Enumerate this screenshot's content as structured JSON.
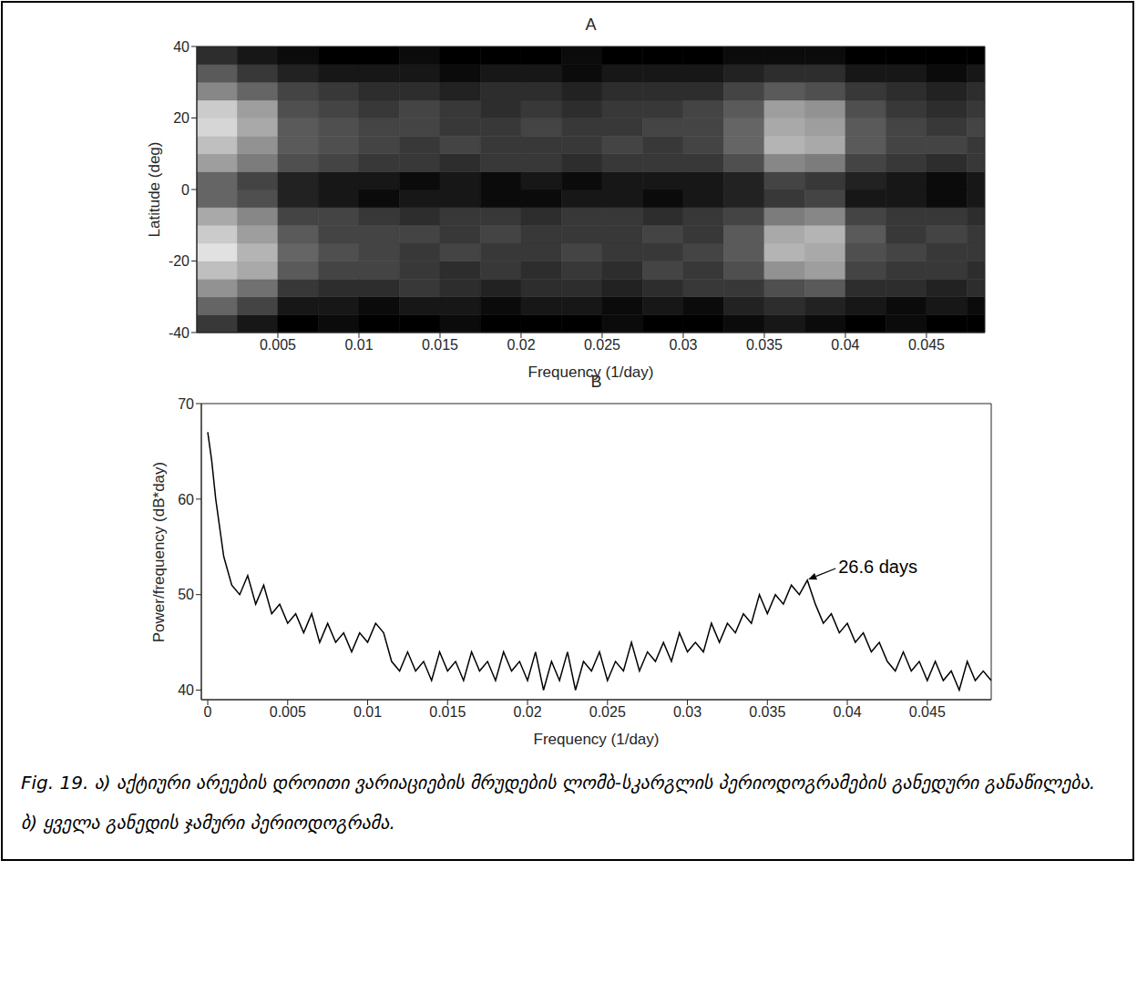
{
  "chart_data": [
    {
      "type": "heatmap",
      "title": "A",
      "xlabel": "Frequency (1/day)",
      "ylabel": "Latitude (deg)",
      "xlim": [
        0,
        0.0486
      ],
      "ylim": [
        -40,
        40
      ],
      "xticks": [
        0.005,
        0.01,
        0.015,
        0.02,
        0.025,
        0.03,
        0.035,
        0.04,
        0.045
      ],
      "yticks": [
        -40,
        -20,
        0,
        20,
        40
      ],
      "x_bins": [
        0,
        0.0025,
        0.005,
        0.0075,
        0.01,
        0.0125,
        0.015,
        0.0175,
        0.02,
        0.0225,
        0.025,
        0.0275,
        0.03,
        0.0325,
        0.035,
        0.0375,
        0.04,
        0.0425,
        0.045,
        0.0475,
        0.05
      ],
      "y_bins": [
        -40,
        -35,
        -30,
        -25,
        -20,
        -15,
        -10,
        -5,
        0,
        5,
        10,
        15,
        20,
        25,
        30,
        35,
        40
      ],
      "cells": [
        [
          45,
          42,
          40,
          41,
          40,
          40,
          41,
          40,
          40,
          40,
          41,
          40,
          40,
          41,
          42,
          41,
          40,
          41,
          40,
          40
        ],
        [
          49,
          46,
          42,
          42,
          41,
          42,
          42,
          41,
          42,
          42,
          41,
          42,
          41,
          43,
          44,
          43,
          42,
          41,
          42,
          41
        ],
        [
          53,
          50,
          45,
          44,
          44,
          45,
          44,
          43,
          44,
          44,
          43,
          44,
          45,
          45,
          47,
          48,
          44,
          44,
          43,
          44
        ],
        [
          57,
          55,
          48,
          46,
          46,
          45,
          44,
          45,
          44,
          45,
          44,
          46,
          45,
          47,
          53,
          54,
          46,
          45,
          45,
          44
        ],
        [
          60,
          56,
          49,
          47,
          46,
          45,
          46,
          45,
          45,
          46,
          45,
          45,
          46,
          48,
          56,
          55,
          47,
          46,
          45,
          45
        ],
        [
          58,
          54,
          48,
          46,
          46,
          46,
          45,
          46,
          45,
          45,
          45,
          46,
          45,
          48,
          55,
          56,
          48,
          45,
          46,
          45
        ],
        [
          55,
          52,
          46,
          46,
          45,
          44,
          45,
          45,
          44,
          45,
          45,
          44,
          45,
          46,
          51,
          52,
          46,
          45,
          45,
          44
        ],
        [
          49,
          47,
          43,
          42,
          41,
          42,
          42,
          41,
          41,
          42,
          42,
          41,
          42,
          43,
          45,
          46,
          42,
          42,
          41,
          42
        ],
        [
          49,
          46,
          43,
          42,
          42,
          41,
          42,
          41,
          42,
          41,
          42,
          42,
          42,
          43,
          46,
          45,
          43,
          42,
          41,
          42
        ],
        [
          54,
          51,
          47,
          46,
          45,
          45,
          44,
          45,
          45,
          44,
          45,
          45,
          45,
          47,
          52,
          51,
          46,
          45,
          44,
          45
        ],
        [
          57,
          53,
          48,
          47,
          46,
          45,
          46,
          45,
          45,
          45,
          46,
          45,
          46,
          49,
          56,
          55,
          48,
          46,
          46,
          45
        ],
        [
          59,
          55,
          48,
          47,
          46,
          46,
          45,
          45,
          46,
          45,
          45,
          46,
          46,
          49,
          55,
          54,
          48,
          46,
          45,
          46
        ],
        [
          58,
          54,
          47,
          46,
          45,
          46,
          45,
          44,
          45,
          44,
          45,
          45,
          46,
          48,
          54,
          53,
          47,
          45,
          44,
          45
        ],
        [
          52,
          49,
          46,
          45,
          44,
          44,
          43,
          44,
          44,
          43,
          44,
          44,
          44,
          46,
          48,
          47,
          45,
          44,
          43,
          44
        ],
        [
          48,
          45,
          43,
          42,
          42,
          42,
          41,
          42,
          42,
          41,
          42,
          42,
          42,
          43,
          44,
          44,
          42,
          42,
          41,
          42
        ],
        [
          44,
          42,
          41,
          40,
          40,
          41,
          40,
          40,
          40,
          41,
          40,
          40,
          40,
          41,
          41,
          41,
          40,
          40,
          40,
          40
        ]
      ]
    },
    {
      "type": "line",
      "title": "B",
      "xlabel": "Frequency (1/day)",
      "ylabel": "Power/frequency (dB*day)",
      "xlim": [
        -0.0004,
        0.049
      ],
      "ylim": [
        39,
        70
      ],
      "xticks": [
        0,
        0.005,
        0.01,
        0.015,
        0.02,
        0.025,
        0.03,
        0.035,
        0.04,
        0.045
      ],
      "yticks": [
        40,
        50,
        60,
        70
      ],
      "color": "#000000",
      "x": [
        0,
        0.00025,
        0.0005,
        0.001,
        0.0015,
        0.002,
        0.0025,
        0.003,
        0.0035,
        0.004,
        0.0045,
        0.005,
        0.0055,
        0.006,
        0.0065,
        0.007,
        0.0075,
        0.008,
        0.0085,
        0.009,
        0.0095,
        0.01,
        0.0105,
        0.011,
        0.0115,
        0.012,
        0.0125,
        0.013,
        0.0135,
        0.014,
        0.0145,
        0.015,
        0.0155,
        0.016,
        0.0165,
        0.017,
        0.0175,
        0.018,
        0.0185,
        0.019,
        0.0195,
        0.02,
        0.0205,
        0.021,
        0.0215,
        0.022,
        0.0225,
        0.023,
        0.0235,
        0.024,
        0.0245,
        0.025,
        0.0255,
        0.026,
        0.0265,
        0.027,
        0.0275,
        0.028,
        0.0285,
        0.029,
        0.0295,
        0.03,
        0.0305,
        0.031,
        0.0315,
        0.032,
        0.0325,
        0.033,
        0.0335,
        0.034,
        0.0345,
        0.035,
        0.0355,
        0.036,
        0.0365,
        0.037,
        0.0375,
        0.038,
        0.0385,
        0.039,
        0.0395,
        0.04,
        0.0405,
        0.041,
        0.0415,
        0.042,
        0.0425,
        0.043,
        0.0435,
        0.044,
        0.0445,
        0.045,
        0.0455,
        0.046,
        0.0465,
        0.047,
        0.0475,
        0.048,
        0.0485,
        0.049
      ],
      "values": [
        67,
        64,
        60,
        54,
        51,
        50,
        52,
        49,
        51,
        48,
        49,
        47,
        48,
        46,
        48,
        45,
        47,
        45,
        46,
        44,
        46,
        45,
        47,
        46,
        43,
        42,
        44,
        42,
        43,
        41,
        44,
        42,
        43,
        41,
        44,
        42,
        43,
        41,
        44,
        42,
        43,
        41,
        44,
        40,
        43,
        41,
        44,
        40,
        43,
        42,
        44,
        41,
        43,
        42,
        45,
        42,
        44,
        43,
        45,
        43,
        46,
        44,
        45,
        44,
        47,
        45,
        47,
        46,
        48,
        47,
        50,
        48,
        50,
        49,
        51,
        50,
        51.5,
        49,
        47,
        48,
        46,
        47,
        45,
        46,
        44,
        45,
        43,
        42,
        44,
        42,
        43,
        41,
        43,
        41,
        42,
        40,
        43,
        41,
        42,
        41
      ],
      "annotations": [
        {
          "text": "26.6 days",
          "x": 0.0375,
          "y": 51.5
        }
      ]
    }
  ],
  "caption": "Fig. 19. ა) აქტიური არეების დროითი ვარიაციების მრუდების ლომბ-სკარგლის პერიოდოგრამების განედური განაწილება. ბ) ყველა განედის ჯამური პერიოდოგრამა."
}
